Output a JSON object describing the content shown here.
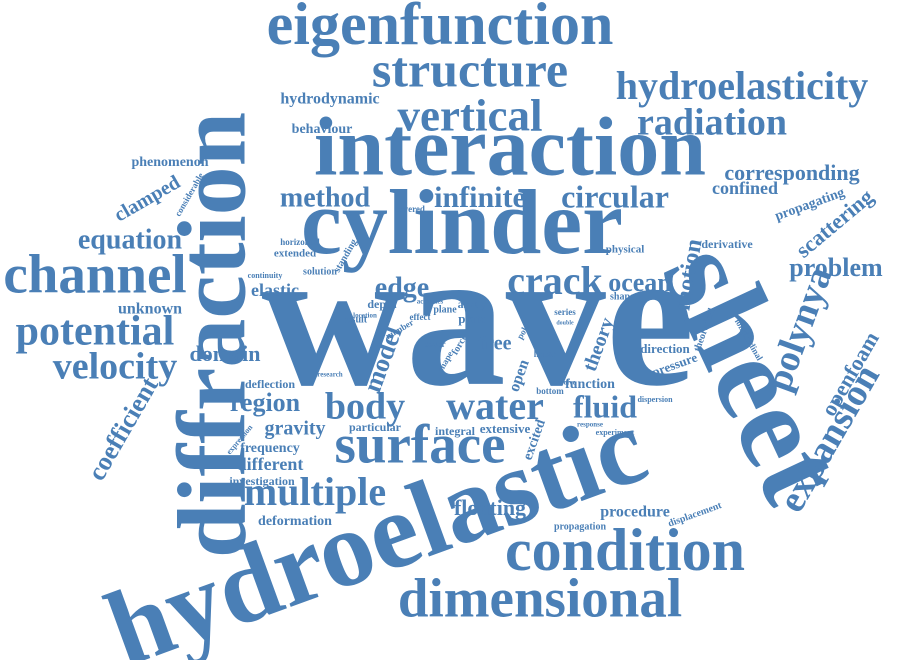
{
  "color": "#4a7fb6",
  "words": [
    "wave",
    "hydroelastic",
    "sheet",
    "diffraction",
    "cylinder",
    "interaction",
    "eigenfunction",
    "structure",
    "vertical",
    "hydroelasticity",
    "radiation",
    "channel",
    "potential",
    "velocity",
    "equation",
    "condition",
    "dimensional",
    "surface",
    "multiple",
    "water",
    "body",
    "crack",
    "polynya",
    "expansion",
    "openfoam",
    "problem",
    "scattering",
    "corresponding",
    "propagating",
    "confined",
    "circular",
    "infinite",
    "method",
    "fluid",
    "region",
    "edge",
    "ocean",
    "motion",
    "model",
    "coefficient",
    "domain",
    "elastic",
    "gravity",
    "frequency",
    "different",
    "investigation",
    "deformation",
    "floating",
    "procedure",
    "propagation",
    "displacement",
    "clamped",
    "phenomenon",
    "considerable",
    "unknown",
    "hydrodynamic",
    "behaviour",
    "theory",
    "excited",
    "extensive",
    "integral",
    "particular",
    "function",
    "direction",
    "pressure",
    "longitudinal",
    "theoretical",
    "derivative",
    "physical",
    "shaped",
    "covered",
    "horizontal",
    "extended",
    "standing",
    "continuity",
    "solution",
    "depth",
    "result",
    "activities",
    "effect",
    "plane",
    "plate",
    "array",
    "free",
    "open",
    "series",
    "location",
    "number",
    "cover",
    "force",
    "shape",
    "linear",
    "involve",
    "bottom",
    "dispersion",
    "response",
    "experiment",
    "deflection",
    "research",
    "expression",
    "polar",
    "double"
  ]
}
